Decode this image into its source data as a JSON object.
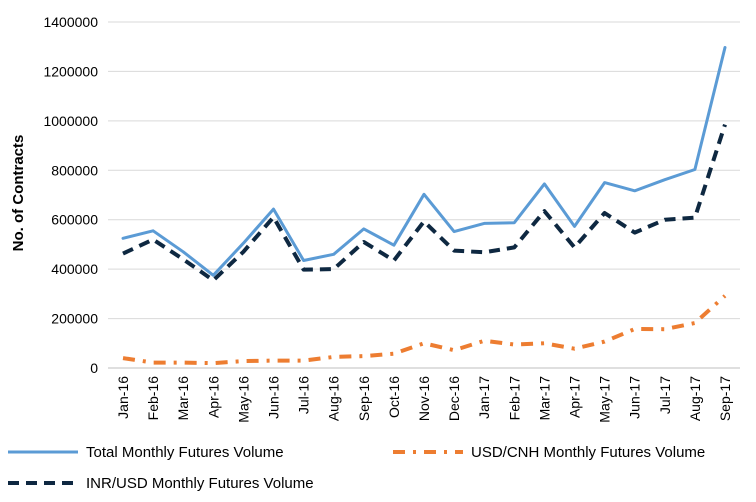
{
  "chart_data": {
    "type": "line",
    "title": "",
    "xlabel": "",
    "ylabel": "No. of Contracts",
    "ylim": [
      0,
      1400000
    ],
    "yticks": [
      "0",
      "200000",
      "400000",
      "600000",
      "800000",
      "1000000",
      "1200000",
      "1400000"
    ],
    "grid": true,
    "legend_position": "bottom",
    "categories": [
      "Jan-16",
      "Feb-16",
      "Mar-16",
      "Apr-16",
      "May-16",
      "Jun-16",
      "Jul-16",
      "Aug-16",
      "Sep-16",
      "Oct-16",
      "Nov-16",
      "Dec-16",
      "Jan-17",
      "Feb-17",
      "Mar-17",
      "Apr-17",
      "May-17",
      "Jun-17",
      "Jul-17",
      "Aug-17",
      "Sep-17"
    ],
    "series": [
      {
        "name": "Total Monthly Futures Volume",
        "color": "#5b9bd5",
        "style": "solid",
        "values": [
          525000,
          555000,
          470000,
          375000,
          505000,
          643000,
          435000,
          460000,
          563000,
          497000,
          703000,
          552000,
          585000,
          588000,
          745000,
          573000,
          750000,
          717000,
          762000,
          803000,
          1297000
        ]
      },
      {
        "name": "INR/USD Monthly Futures Volume",
        "color": "#0e2841",
        "style": "dashed",
        "values": [
          463000,
          520000,
          440000,
          355000,
          470000,
          610000,
          398000,
          400000,
          510000,
          435000,
          593000,
          475000,
          468000,
          488000,
          635000,
          488000,
          627000,
          548000,
          600000,
          608000,
          985000
        ]
      },
      {
        "name": "USD/CNH Monthly Futures Volume",
        "color": "#ed7d31",
        "style": "dashdot",
        "values": [
          40000,
          22000,
          22000,
          20000,
          28000,
          30000,
          30000,
          45000,
          48000,
          58000,
          100000,
          72000,
          110000,
          95000,
          100000,
          78000,
          107000,
          158000,
          157000,
          182000,
          292000
        ]
      }
    ]
  },
  "legend": {
    "items": [
      {
        "label": "Total Monthly Futures Volume",
        "color": "#5b9bd5",
        "style": "solid"
      },
      {
        "label": "USD/CNH Monthly Futures Volume",
        "color": "#ed7d31",
        "style": "dashdot"
      },
      {
        "label": "INR/USD Monthly Futures Volume",
        "color": "#0e2841",
        "style": "dashed"
      }
    ]
  }
}
